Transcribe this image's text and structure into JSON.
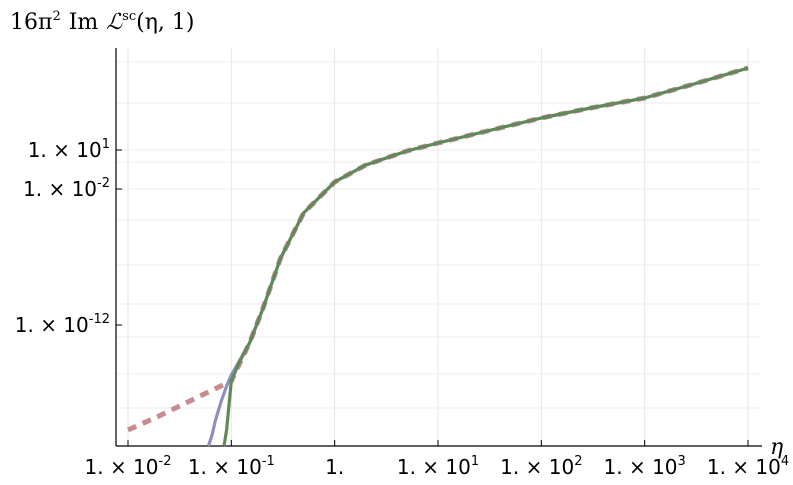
{
  "chart_data": {
    "type": "line",
    "title": "16π² Im ℒsc(η, 1)",
    "title_parts": {
      "prefix": "16π",
      "prefix_sup": "2",
      "im": "Im",
      "script": "ℒ",
      "script_sup": "sc",
      "args": "(η, 1)"
    },
    "xlabel": "η",
    "ylabel": "",
    "xscale": "log10",
    "yscale": "log10 (with broken/irregular tick labels)",
    "xlim": [
      0.01,
      10000
    ],
    "grid": true,
    "legend": "none",
    "x_ticks": [
      {
        "value": 0.01,
        "base": "1. × 10",
        "exp": "-2"
      },
      {
        "value": 0.1,
        "base": "1. × 10",
        "exp": "-1"
      },
      {
        "value": 1,
        "base": "1.",
        "exp": ""
      },
      {
        "value": 10,
        "base": "1. × 10",
        "exp": "1"
      },
      {
        "value": 100,
        "base": "1. × 10",
        "exp": "2"
      },
      {
        "value": 1000,
        "base": "1. × 10",
        "exp": "3"
      },
      {
        "value": 10000,
        "base": "1. × 10",
        "exp": "4"
      }
    ],
    "y_ticks": [
      {
        "base": "1. × 10",
        "exp": "1"
      },
      {
        "base": "1. × 10",
        "exp": "-2"
      },
      {
        "base": "1. × 10",
        "exp": "-12"
      }
    ],
    "series": [
      {
        "color": "#c98a8e",
        "style": "dashed",
        "x": [
          0.01,
          0.02,
          0.05,
          0.1,
          0.15,
          0.2,
          0.3,
          0.5,
          1,
          2,
          5,
          10,
          30,
          100,
          300,
          1000,
          3000,
          10000
        ],
        "y": [
          -42,
          -39,
          -35,
          -32,
          -22,
          -15,
          -6,
          2,
          11,
          16.5,
          20.5,
          23,
          25.5,
          28,
          30,
          32,
          34,
          36
        ]
      },
      {
        "color": "#8e8ec1",
        "style": "solid",
        "x": [
          0.06,
          0.065,
          0.07,
          0.08,
          0.09,
          0.1,
          0.15,
          0.2,
          0.3,
          0.5,
          1,
          2,
          5,
          10,
          30,
          100,
          300,
          1000,
          3000,
          10000
        ],
        "y": [
          -48,
          -44,
          -40,
          -36,
          -33,
          -31,
          -22,
          -15,
          -6,
          2,
          11,
          16.5,
          20.5,
          23,
          25.5,
          28,
          30,
          32,
          34,
          36
        ]
      },
      {
        "color": "#5f8a57",
        "style": "solid",
        "x": [
          0.085,
          0.09,
          0.1,
          0.12,
          0.15,
          0.2,
          0.3,
          0.5,
          1,
          2,
          5,
          10,
          30,
          100,
          300,
          1000,
          3000,
          10000
        ],
        "y": [
          -48,
          -42,
          -32,
          -27,
          -22,
          -15,
          -6,
          2,
          11,
          16.5,
          20.5,
          23,
          25.5,
          28,
          30,
          32,
          34,
          36
        ]
      }
    ]
  }
}
